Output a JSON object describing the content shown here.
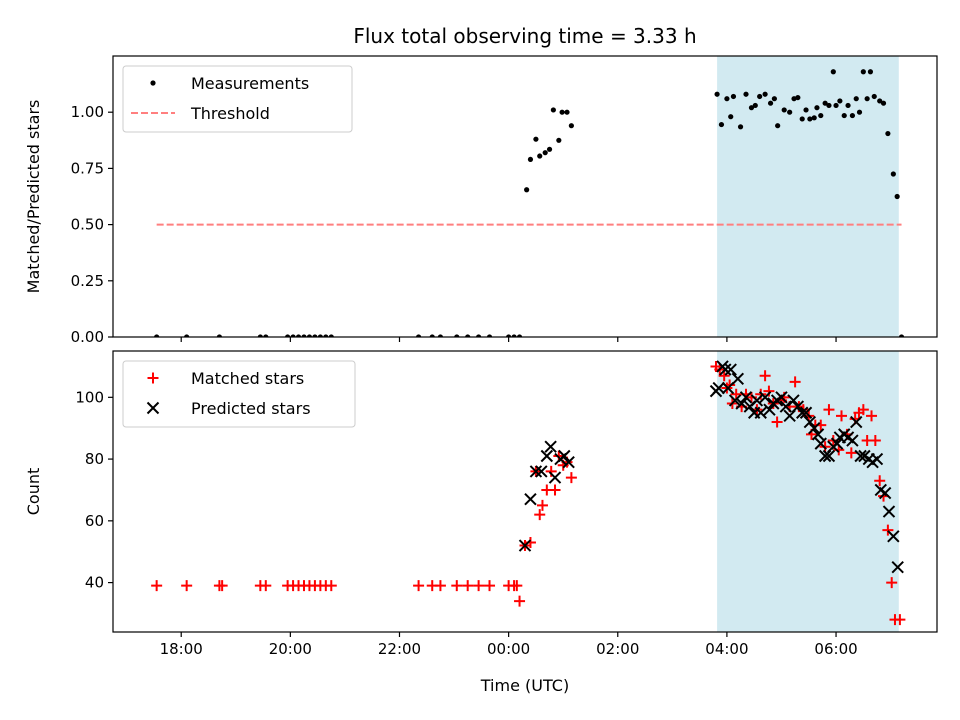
{
  "title": "Flux total observing time = 3.33 h",
  "chart_data": [
    {
      "type": "scatter",
      "ylabel": "Matched/Predicted stars",
      "xlabel": "",
      "xlim": [
        -7.25,
        7.85
      ],
      "ylim": [
        0,
        1.25
      ],
      "xticks": [
        {
          "v": -6,
          "label": ""
        },
        {
          "v": -4,
          "label": ""
        },
        {
          "v": -2,
          "label": ""
        },
        {
          "v": 0,
          "label": ""
        },
        {
          "v": 2,
          "label": ""
        },
        {
          "v": 4,
          "label": ""
        },
        {
          "v": 6,
          "label": ""
        }
      ],
      "yticks": [
        {
          "v": 0,
          "label": "0.00"
        },
        {
          "v": 0.25,
          "label": "0.25"
        },
        {
          "v": 0.5,
          "label": "0.50"
        },
        {
          "v": 0.75,
          "label": "0.75"
        },
        {
          "v": 1.0,
          "label": "1.00"
        }
      ],
      "legend_position": "top-left",
      "legend": [
        {
          "label": "Measurements",
          "marker": "dot",
          "color": "#000000"
        },
        {
          "label": "Threshold",
          "marker": "dashed-line",
          "color": "#ff7f7f"
        }
      ],
      "shaded_span": {
        "x0": 3.82,
        "x1": 7.15,
        "color": "#add8e6"
      },
      "threshold": {
        "x0": -6.45,
        "x1": 7.2,
        "y": 0.5,
        "color": "#ff7f7f"
      },
      "series": [
        {
          "name": "Measurements",
          "marker": "dot",
          "color": "#000000",
          "points": [
            [
              -6.45,
              0
            ],
            [
              -5.9,
              0
            ],
            [
              -5.3,
              0
            ],
            [
              -4.55,
              0
            ],
            [
              -4.45,
              0
            ],
            [
              -4.05,
              0
            ],
            [
              -3.95,
              0
            ],
            [
              -3.85,
              0
            ],
            [
              -3.75,
              0
            ],
            [
              -3.65,
              0
            ],
            [
              -3.55,
              0
            ],
            [
              -3.45,
              0
            ],
            [
              -3.35,
              0
            ],
            [
              -3.25,
              0
            ],
            [
              -1.65,
              0
            ],
            [
              -1.4,
              0
            ],
            [
              -1.25,
              0
            ],
            [
              -0.95,
              0
            ],
            [
              -0.75,
              0
            ],
            [
              -0.55,
              0
            ],
            [
              -0.35,
              0
            ],
            [
              0.0,
              0
            ],
            [
              0.1,
              0
            ],
            [
              0.2,
              0
            ],
            [
              0.33,
              0.655
            ],
            [
              0.4,
              0.79
            ],
            [
              0.5,
              0.88
            ],
            [
              0.57,
              0.805
            ],
            [
              0.67,
              0.82
            ],
            [
              0.75,
              0.835
            ],
            [
              0.82,
              1.01
            ],
            [
              0.92,
              0.875
            ],
            [
              0.98,
              1.0
            ],
            [
              1.07,
              1.0
            ],
            [
              1.15,
              0.94
            ],
            [
              3.82,
              1.08
            ],
            [
              3.9,
              0.945
            ],
            [
              4.0,
              1.06
            ],
            [
              4.07,
              0.98
            ],
            [
              4.12,
              1.07
            ],
            [
              4.25,
              0.935
            ],
            [
              4.35,
              1.08
            ],
            [
              4.45,
              1.02
            ],
            [
              4.52,
              1.03
            ],
            [
              4.6,
              1.07
            ],
            [
              4.7,
              1.08
            ],
            [
              4.8,
              1.04
            ],
            [
              4.87,
              1.06
            ],
            [
              4.93,
              0.94
            ],
            [
              5.05,
              1.01
            ],
            [
              5.15,
              1.0
            ],
            [
              5.23,
              1.06
            ],
            [
              5.3,
              1.065
            ],
            [
              5.38,
              0.97
            ],
            [
              5.45,
              1.01
            ],
            [
              5.52,
              0.97
            ],
            [
              5.6,
              0.975
            ],
            [
              5.65,
              1.02
            ],
            [
              5.72,
              0.985
            ],
            [
              5.8,
              1.04
            ],
            [
              5.87,
              1.03
            ],
            [
              5.95,
              1.18
            ],
            [
              6.0,
              1.03
            ],
            [
              6.07,
              1.05
            ],
            [
              6.15,
              0.985
            ],
            [
              6.22,
              1.03
            ],
            [
              6.3,
              0.985
            ],
            [
              6.37,
              1.06
            ],
            [
              6.43,
              1.0
            ],
            [
              6.5,
              1.18
            ],
            [
              6.57,
              1.06
            ],
            [
              6.63,
              1.18
            ],
            [
              6.7,
              1.07
            ],
            [
              6.8,
              1.05
            ],
            [
              6.87,
              1.04
            ],
            [
              6.95,
              0.905
            ],
            [
              7.05,
              0.725
            ],
            [
              7.12,
              0.625
            ],
            [
              7.2,
              0
            ]
          ]
        }
      ]
    },
    {
      "type": "scatter",
      "ylabel": "Count",
      "xlabel": "Time (UTC)",
      "xlim": [
        -7.25,
        7.85
      ],
      "ylim": [
        24,
        115
      ],
      "xticks": [
        {
          "v": -6,
          "label": "18:00"
        },
        {
          "v": -4,
          "label": "20:00"
        },
        {
          "v": -2,
          "label": "22:00"
        },
        {
          "v": 0,
          "label": "00:00"
        },
        {
          "v": 2,
          "label": "02:00"
        },
        {
          "v": 4,
          "label": "04:00"
        },
        {
          "v": 6,
          "label": "06:00"
        }
      ],
      "yticks": [
        {
          "v": 40,
          "label": "40"
        },
        {
          "v": 60,
          "label": "60"
        },
        {
          "v": 80,
          "label": "80"
        },
        {
          "v": 100,
          "label": "100"
        }
      ],
      "legend_position": "top-left",
      "legend": [
        {
          "label": "Matched stars",
          "marker": "plus",
          "color": "#ff0000"
        },
        {
          "label": "Predicted stars",
          "marker": "cross",
          "color": "#000000"
        }
      ],
      "shaded_span": {
        "x0": 3.82,
        "x1": 7.15,
        "color": "#add8e6"
      },
      "series": [
        {
          "name": "Matched stars",
          "marker": "plus",
          "color": "#ff0000",
          "points": [
            [
              -6.45,
              39
            ],
            [
              -5.9,
              39
            ],
            [
              -5.3,
              39
            ],
            [
              -5.25,
              39
            ],
            [
              -4.55,
              39
            ],
            [
              -4.45,
              39
            ],
            [
              -4.05,
              39
            ],
            [
              -3.95,
              39
            ],
            [
              -3.85,
              39
            ],
            [
              -3.75,
              39
            ],
            [
              -3.65,
              39
            ],
            [
              -3.55,
              39
            ],
            [
              -3.45,
              39
            ],
            [
              -3.35,
              39
            ],
            [
              -3.25,
              39
            ],
            [
              -1.65,
              39
            ],
            [
              -1.4,
              39
            ],
            [
              -1.25,
              39
            ],
            [
              -0.95,
              39
            ],
            [
              -0.75,
              39
            ],
            [
              -0.55,
              39
            ],
            [
              -0.35,
              39
            ],
            [
              0.0,
              39
            ],
            [
              0.1,
              39
            ],
            [
              0.15,
              39
            ],
            [
              0.2,
              34
            ],
            [
              0.3,
              52
            ],
            [
              0.4,
              53
            ],
            [
              0.5,
              76
            ],
            [
              0.57,
              62
            ],
            [
              0.62,
              65
            ],
            [
              0.7,
              70
            ],
            [
              0.78,
              76
            ],
            [
              0.85,
              70
            ],
            [
              0.92,
              81
            ],
            [
              1.0,
              78
            ],
            [
              1.07,
              79
            ],
            [
              1.15,
              74
            ],
            [
              3.8,
              110
            ],
            [
              3.87,
              109
            ],
            [
              3.95,
              107
            ],
            [
              4.0,
              103
            ],
            [
              4.05,
              104
            ],
            [
              4.1,
              98
            ],
            [
              4.17,
              101
            ],
            [
              4.27,
              97
            ],
            [
              4.35,
              101
            ],
            [
              4.45,
              100
            ],
            [
              4.55,
              96
            ],
            [
              4.62,
              101
            ],
            [
              4.7,
              107
            ],
            [
              4.77,
              102
            ],
            [
              4.85,
              98
            ],
            [
              4.92,
              92
            ],
            [
              5.0,
              99
            ],
            [
              5.05,
              100
            ],
            [
              5.15,
              97
            ],
            [
              5.25,
              105
            ],
            [
              5.32,
              97
            ],
            [
              5.4,
              96
            ],
            [
              5.5,
              94
            ],
            [
              5.55,
              88
            ],
            [
              5.62,
              91
            ],
            [
              5.72,
              91
            ],
            [
              5.8,
              84
            ],
            [
              5.87,
              96
            ],
            [
              5.95,
              86
            ],
            [
              6.05,
              83
            ],
            [
              6.1,
              94
            ],
            [
              6.2,
              88
            ],
            [
              6.28,
              82
            ],
            [
              6.35,
              93
            ],
            [
              6.42,
              95
            ],
            [
              6.5,
              96
            ],
            [
              6.57,
              86
            ],
            [
              6.65,
              94
            ],
            [
              6.72,
              86
            ],
            [
              6.8,
              73
            ],
            [
              6.87,
              68
            ],
            [
              6.95,
              57
            ],
            [
              7.02,
              40
            ],
            [
              7.08,
              28
            ],
            [
              7.17,
              28
            ]
          ]
        },
        {
          "name": "Predicted stars",
          "marker": "cross",
          "color": "#000000",
          "points": [
            [
              0.3,
              52
            ],
            [
              0.4,
              67
            ],
            [
              0.5,
              76
            ],
            [
              0.6,
              76
            ],
            [
              0.7,
              81
            ],
            [
              0.77,
              84
            ],
            [
              0.85,
              74
            ],
            [
              0.95,
              80
            ],
            [
              1.02,
              81
            ],
            [
              1.1,
              79
            ],
            [
              3.8,
              102
            ],
            [
              3.85,
              103
            ],
            [
              3.92,
              110
            ],
            [
              3.97,
              109
            ],
            [
              4.02,
              103
            ],
            [
              4.07,
              109
            ],
            [
              4.15,
              99
            ],
            [
              4.2,
              106
            ],
            [
              4.27,
              98
            ],
            [
              4.35,
              100
            ],
            [
              4.42,
              97
            ],
            [
              4.5,
              95
            ],
            [
              4.55,
              99
            ],
            [
              4.62,
              95
            ],
            [
              4.7,
              100
            ],
            [
              4.78,
              96
            ],
            [
              4.85,
              98
            ],
            [
              4.92,
              99
            ],
            [
              5.0,
              100
            ],
            [
              5.08,
              97
            ],
            [
              5.15,
              94
            ],
            [
              5.22,
              99
            ],
            [
              5.3,
              97
            ],
            [
              5.38,
              95
            ],
            [
              5.45,
              95
            ],
            [
              5.52,
              92
            ],
            [
              5.6,
              90
            ],
            [
              5.67,
              88
            ],
            [
              5.72,
              85
            ],
            [
              5.8,
              81
            ],
            [
              5.87,
              81
            ],
            [
              5.95,
              84
            ],
            [
              6.02,
              85
            ],
            [
              6.07,
              87
            ],
            [
              6.15,
              88
            ],
            [
              6.22,
              87
            ],
            [
              6.3,
              86
            ],
            [
              6.37,
              92
            ],
            [
              6.45,
              81
            ],
            [
              6.52,
              81
            ],
            [
              6.6,
              80
            ],
            [
              6.67,
              79
            ],
            [
              6.75,
              80
            ],
            [
              6.82,
              70
            ],
            [
              6.9,
              69
            ],
            [
              6.97,
              63
            ],
            [
              7.05,
              55
            ],
            [
              7.13,
              45
            ]
          ]
        }
      ]
    }
  ]
}
